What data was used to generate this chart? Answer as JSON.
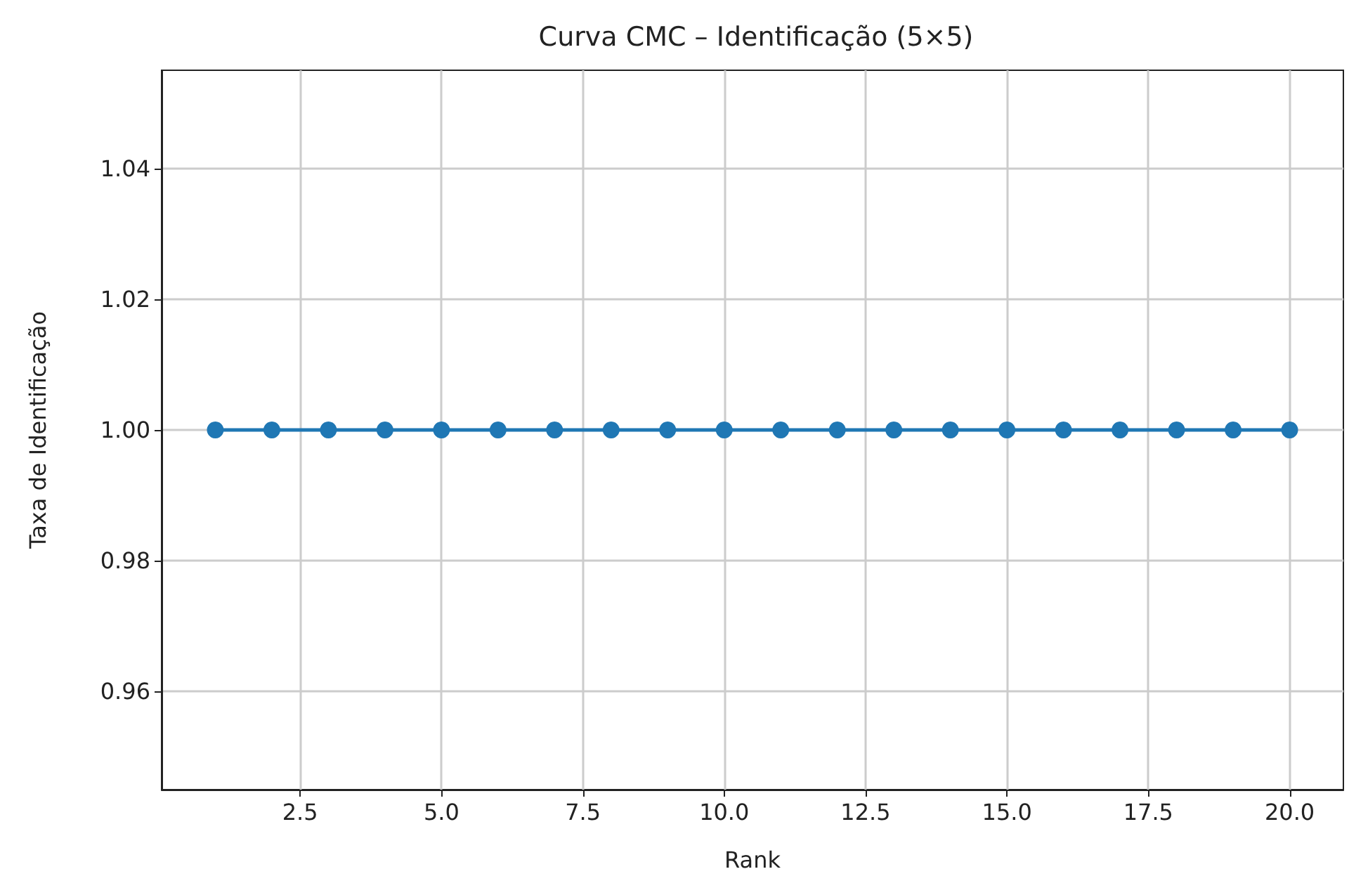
{
  "chart_data": {
    "type": "line",
    "title": "Curva CMC – Identificação (5×5)",
    "xlabel": "Rank",
    "ylabel": "Taxa de Identificação",
    "x": [
      1,
      2,
      3,
      4,
      5,
      6,
      7,
      8,
      9,
      10,
      11,
      12,
      13,
      14,
      15,
      16,
      17,
      18,
      19,
      20
    ],
    "series": [
      {
        "color": "#1f77b4",
        "values": [
          1,
          1,
          1,
          1,
          1,
          1,
          1,
          1,
          1,
          1,
          1,
          1,
          1,
          1,
          1,
          1,
          1,
          1,
          1,
          1
        ]
      }
    ],
    "xlim": [
      0.05,
      20.95
    ],
    "xticks": [
      {
        "value": 2.5,
        "label": "2.5"
      },
      {
        "value": 5,
        "label": "5.0"
      },
      {
        "value": 7.5,
        "label": "7.5"
      },
      {
        "value": 10,
        "label": "10.0"
      },
      {
        "value": 12.5,
        "label": "12.5"
      },
      {
        "value": 15,
        "label": "15.0"
      },
      {
        "value": 17.5,
        "label": "17.5"
      },
      {
        "value": 20,
        "label": "20.0"
      }
    ],
    "ylim": [
      0.945,
      1.055
    ],
    "yticks": [
      0.96,
      0.98,
      {
        "value": 1,
        "label": "1.00"
      },
      1.02,
      1.04
    ],
    "grid": true,
    "marker": "circle",
    "line_style": "solid"
  }
}
